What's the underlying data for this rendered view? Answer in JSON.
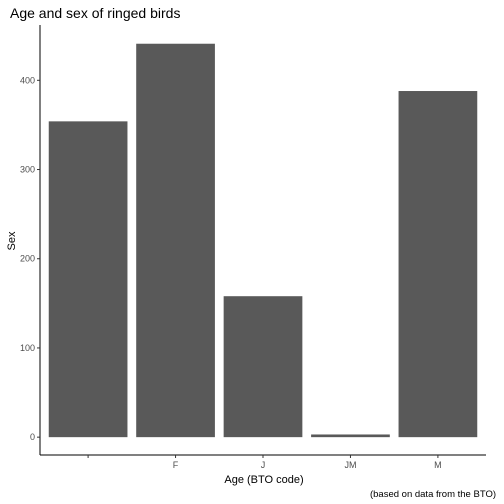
{
  "chart_data": {
    "type": "bar",
    "title": "Age and sex of ringed birds",
    "xlabel": "Age (BTO code)",
    "ylabel": "Sex",
    "caption": "(based on data from the BTO)",
    "categories": [
      "",
      "F",
      "J",
      "JM",
      "M"
    ],
    "values": [
      354,
      441,
      158,
      3,
      388
    ],
    "ylim": [
      -20,
      462
    ],
    "yticks": [
      0,
      100,
      200,
      300,
      400
    ],
    "grid": false,
    "legend": "none",
    "bar_color": "#595959"
  }
}
